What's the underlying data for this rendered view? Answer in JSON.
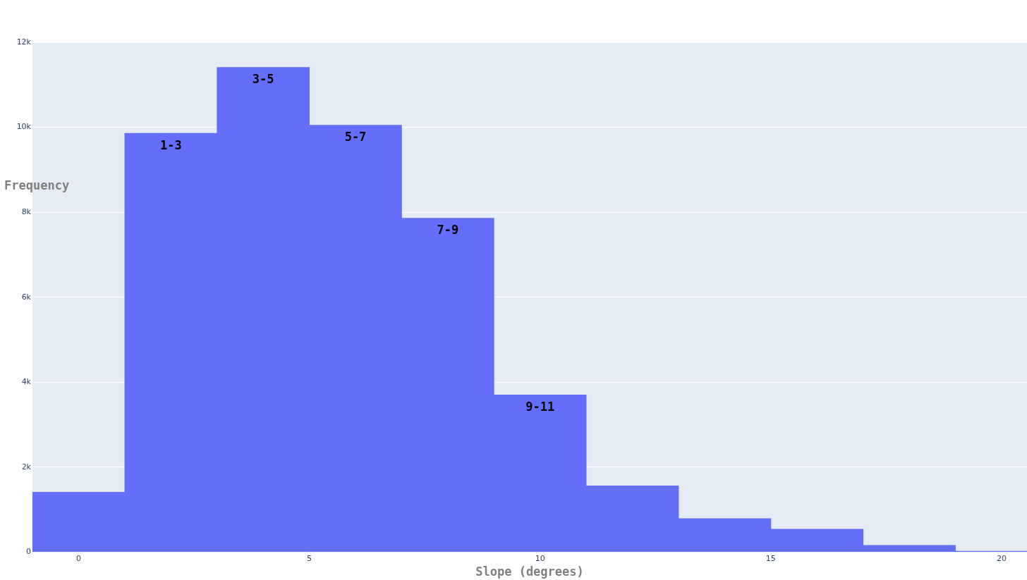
{
  "chart_data": {
    "type": "histogram",
    "xlabel": "Slope (degrees)",
    "ylabel": "Frequency",
    "bins": [
      -1,
      1,
      3,
      5,
      7,
      9,
      11,
      13,
      15,
      17,
      19,
      21
    ],
    "values": [
      1410,
      9860,
      11410,
      10050,
      7860,
      3700,
      1560,
      790,
      540,
      160,
      20
    ],
    "color": "#636efa",
    "xlim": [
      -1,
      20.55
    ],
    "xticks": [
      0,
      5,
      10,
      15,
      20
    ],
    "ylim": [
      0,
      12000
    ],
    "yticks": [
      {
        "value": 0,
        "label": "0"
      },
      {
        "value": 2000,
        "label": "2k"
      },
      {
        "value": 4000,
        "label": "4k"
      },
      {
        "value": 6000,
        "label": "6k"
      },
      {
        "value": 8000,
        "label": "8k"
      },
      {
        "value": 10000,
        "label": "10k"
      },
      {
        "value": 12000,
        "label": "12k"
      }
    ],
    "grid": "y",
    "legend": false,
    "annotations": [
      {
        "text": "1-3",
        "x": 2,
        "y": 9860
      },
      {
        "text": "3-5",
        "x": 4,
        "y": 11410
      },
      {
        "text": "5-7",
        "x": 6,
        "y": 10050
      },
      {
        "text": "7-9",
        "x": 8,
        "y": 7860
      },
      {
        "text": "9-11",
        "x": 10,
        "y": 3700
      }
    ]
  }
}
